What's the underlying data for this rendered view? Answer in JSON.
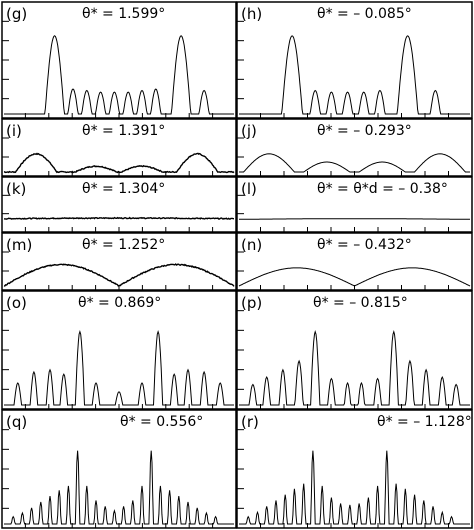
{
  "chart_data": [
    {
      "type": "line",
      "panel": "(g)",
      "annotation": "θ* = 1.599°",
      "shape": {
        "kind": "multi",
        "y_top": 0.85,
        "peaks": [
          [
            0.22,
            0.042,
            1.0
          ],
          [
            0.3,
            0.022,
            0.32
          ],
          [
            0.36,
            0.022,
            0.3
          ],
          [
            0.42,
            0.022,
            0.28
          ],
          [
            0.48,
            0.022,
            0.28
          ],
          [
            0.54,
            0.022,
            0.28
          ],
          [
            0.6,
            0.022,
            0.3
          ],
          [
            0.66,
            0.022,
            0.32
          ],
          [
            0.77,
            0.042,
            1.0
          ],
          [
            0.87,
            0.022,
            0.3
          ]
        ]
      }
    },
    {
      "type": "line",
      "panel": "(h)",
      "annotation": "θ* = – 0.085°",
      "shape": {
        "kind": "multi",
        "y_top": 0.85,
        "peaks": [
          [
            0.23,
            0.045,
            1.0
          ],
          [
            0.33,
            0.022,
            0.3
          ],
          [
            0.4,
            0.022,
            0.28
          ],
          [
            0.47,
            0.022,
            0.28
          ],
          [
            0.54,
            0.022,
            0.28
          ],
          [
            0.61,
            0.022,
            0.3
          ],
          [
            0.73,
            0.045,
            1.0
          ],
          [
            0.85,
            0.022,
            0.3
          ]
        ]
      }
    },
    {
      "type": "line",
      "panel": "(i)",
      "annotation": "θ* = 1.391°",
      "shape": {
        "kind": "arches",
        "y_top": 0.55,
        "peaks": [
          [
            0.14,
            0.09,
            1.0
          ],
          [
            0.4,
            0.09,
            0.32
          ],
          [
            0.6,
            0.09,
            0.32
          ],
          [
            0.84,
            0.09,
            1.0
          ]
        ],
        "noise": true
      }
    },
    {
      "type": "line",
      "panel": "(j)",
      "annotation": "θ* = – 0.293°",
      "shape": {
        "kind": "arches",
        "y_top": 0.55,
        "peaks": [
          [
            0.13,
            0.11,
            1.0
          ],
          [
            0.38,
            0.1,
            0.55
          ],
          [
            0.62,
            0.1,
            0.55
          ],
          [
            0.87,
            0.11,
            1.0
          ]
        ]
      }
    },
    {
      "type": "line",
      "panel": "(k)",
      "annotation": "θ* = 1.304°",
      "shape": {
        "kind": "flat",
        "level": 0.3,
        "noise": true
      }
    },
    {
      "type": "line",
      "panel": "(l)",
      "annotation": "θ* = θ*d = – 0.38°",
      "shape": {
        "kind": "flat",
        "level": 0.28
      }
    },
    {
      "type": "line",
      "panel": "(m)",
      "annotation": "θ* = 1.252°",
      "shape": {
        "kind": "bigarches",
        "y_top": 0.65,
        "centers": [
          0.26,
          0.74
        ],
        "noise": true
      }
    },
    {
      "type": "line",
      "panel": "(n)",
      "annotation": "θ* = – 0.432°",
      "shape": {
        "kind": "bigarches",
        "y_top": 0.55,
        "centers": [
          0.24,
          0.76
        ]
      }
    },
    {
      "type": "line",
      "panel": "(o)",
      "annotation": "θ* = 0.869°",
      "shape": {
        "kind": "multi",
        "y_top": 0.78,
        "peaks": [
          [
            0.06,
            0.016,
            0.3
          ],
          [
            0.13,
            0.016,
            0.45
          ],
          [
            0.2,
            0.016,
            0.48
          ],
          [
            0.26,
            0.016,
            0.42
          ],
          [
            0.33,
            0.02,
            1.0
          ],
          [
            0.4,
            0.016,
            0.3
          ],
          [
            0.5,
            0.016,
            0.18
          ],
          [
            0.6,
            0.016,
            0.3
          ],
          [
            0.67,
            0.02,
            1.0
          ],
          [
            0.74,
            0.016,
            0.42
          ],
          [
            0.8,
            0.016,
            0.48
          ],
          [
            0.87,
            0.016,
            0.45
          ],
          [
            0.94,
            0.016,
            0.3
          ]
        ]
      }
    },
    {
      "type": "line",
      "panel": "(p)",
      "annotation": "θ* = – 0.815°",
      "shape": {
        "kind": "multi",
        "y_top": 0.78,
        "peaks": [
          [
            0.06,
            0.016,
            0.28
          ],
          [
            0.12,
            0.016,
            0.38
          ],
          [
            0.19,
            0.016,
            0.48
          ],
          [
            0.26,
            0.018,
            0.6
          ],
          [
            0.33,
            0.02,
            1.0
          ],
          [
            0.4,
            0.016,
            0.36
          ],
          [
            0.47,
            0.014,
            0.3
          ],
          [
            0.53,
            0.014,
            0.3
          ],
          [
            0.6,
            0.016,
            0.36
          ],
          [
            0.67,
            0.02,
            1.0
          ],
          [
            0.74,
            0.018,
            0.6
          ],
          [
            0.81,
            0.016,
            0.48
          ],
          [
            0.88,
            0.016,
            0.38
          ],
          [
            0.94,
            0.016,
            0.28
          ]
        ]
      }
    },
    {
      "type": "line",
      "panel": "(q)",
      "annotation": "θ* = 0.556°",
      "shape": {
        "kind": "multi",
        "y_top": 0.78,
        "peaks": [
          [
            0.04,
            0.008,
            0.1
          ],
          [
            0.08,
            0.008,
            0.15
          ],
          [
            0.12,
            0.008,
            0.22
          ],
          [
            0.16,
            0.008,
            0.3
          ],
          [
            0.2,
            0.008,
            0.38
          ],
          [
            0.24,
            0.008,
            0.46
          ],
          [
            0.28,
            0.008,
            0.52
          ],
          [
            0.32,
            0.009,
            1.0
          ],
          [
            0.36,
            0.008,
            0.52
          ],
          [
            0.4,
            0.008,
            0.32
          ],
          [
            0.44,
            0.008,
            0.24
          ],
          [
            0.48,
            0.008,
            0.18
          ],
          [
            0.52,
            0.008,
            0.24
          ],
          [
            0.56,
            0.008,
            0.32
          ],
          [
            0.6,
            0.008,
            0.52
          ],
          [
            0.64,
            0.009,
            1.0
          ],
          [
            0.68,
            0.008,
            0.52
          ],
          [
            0.72,
            0.008,
            0.46
          ],
          [
            0.76,
            0.008,
            0.38
          ],
          [
            0.8,
            0.008,
            0.3
          ],
          [
            0.84,
            0.008,
            0.22
          ],
          [
            0.88,
            0.008,
            0.15
          ],
          [
            0.92,
            0.008,
            0.1
          ]
        ]
      }
    },
    {
      "type": "line",
      "panel": "(r)",
      "annotation": "θ* = – 1.128°",
      "shape": {
        "kind": "multi",
        "y_top": 0.78,
        "peaks": [
          [
            0.04,
            0.008,
            0.1
          ],
          [
            0.08,
            0.008,
            0.16
          ],
          [
            0.12,
            0.008,
            0.24
          ],
          [
            0.16,
            0.008,
            0.32
          ],
          [
            0.2,
            0.008,
            0.4
          ],
          [
            0.24,
            0.008,
            0.48
          ],
          [
            0.28,
            0.008,
            0.55
          ],
          [
            0.32,
            0.009,
            1.0
          ],
          [
            0.36,
            0.008,
            0.52
          ],
          [
            0.4,
            0.008,
            0.36
          ],
          [
            0.44,
            0.008,
            0.28
          ],
          [
            0.48,
            0.008,
            0.26
          ],
          [
            0.52,
            0.008,
            0.28
          ],
          [
            0.56,
            0.008,
            0.36
          ],
          [
            0.6,
            0.008,
            0.52
          ],
          [
            0.64,
            0.009,
            1.0
          ],
          [
            0.68,
            0.008,
            0.55
          ],
          [
            0.72,
            0.008,
            0.48
          ],
          [
            0.76,
            0.008,
            0.4
          ],
          [
            0.8,
            0.008,
            0.32
          ],
          [
            0.84,
            0.008,
            0.24
          ],
          [
            0.88,
            0.008,
            0.16
          ],
          [
            0.92,
            0.008,
            0.1
          ]
        ]
      }
    }
  ]
}
